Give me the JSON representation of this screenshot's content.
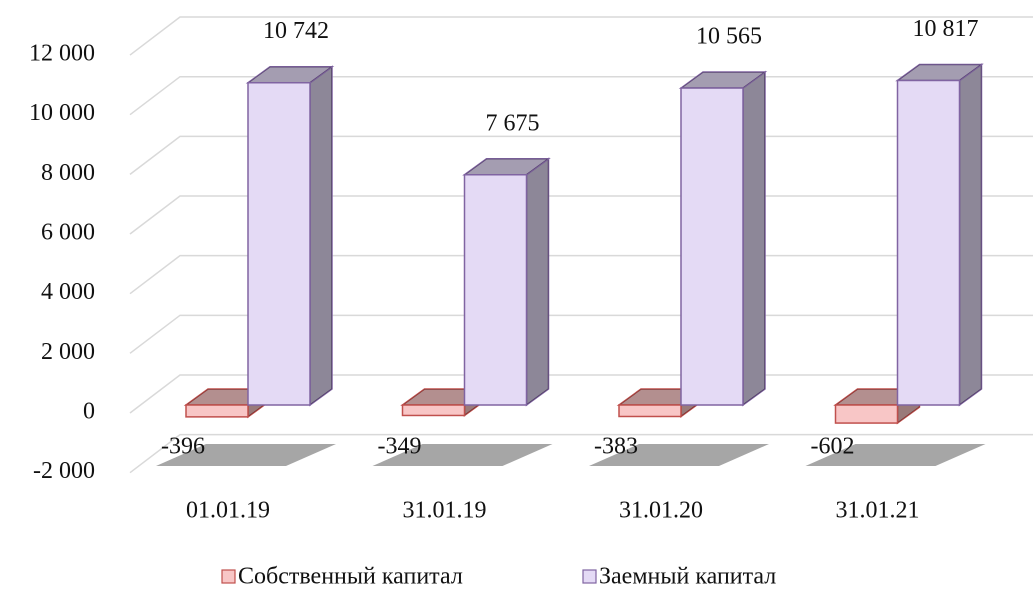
{
  "chart_data": {
    "type": "bar3d",
    "categories": [
      "01.01.19",
      "31.01.19",
      "31.01.20",
      "31.01.21"
    ],
    "series": [
      {
        "name": "Собственный капитал",
        "color": "#f8c6c6",
        "edge": "#c0504d",
        "values": [
          -396,
          -349,
          -383,
          -602
        ]
      },
      {
        "name": "Заемный капитал",
        "color": "#e4daf5",
        "edge": "#8064a2",
        "values": [
          10742,
          7675,
          10565,
          10817
        ],
        "value_labels": [
          "10 742",
          "7 675",
          "10 565",
          "10 817"
        ]
      }
    ],
    "ylim": [
      -2000,
      12000
    ],
    "yticks": [
      {
        "value": -2000,
        "label": "-2 000"
      },
      0,
      {
        "value": 2000,
        "label": "2 000"
      },
      {
        "value": 4000,
        "label": "4 000"
      },
      {
        "value": 6000,
        "label": "6 000"
      },
      {
        "value": 8000,
        "label": "8 000"
      },
      {
        "value": 10000,
        "label": "10 000"
      },
      {
        "value": 12000,
        "label": "12 000"
      }
    ],
    "grid": true,
    "legend": "bottom"
  }
}
